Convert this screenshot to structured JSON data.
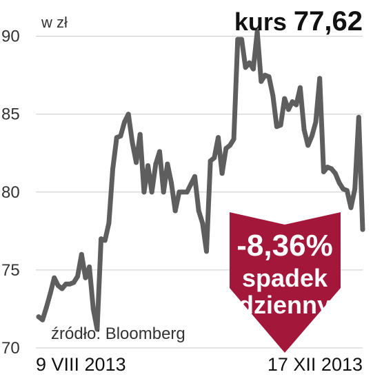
{
  "chart_data": {
    "type": "line",
    "unit_label": "w zł",
    "ylim": [
      70,
      91
    ],
    "yticks": [
      90,
      85,
      80,
      75,
      70
    ],
    "grid": true,
    "x_start_label": "9 VIII 2013",
    "x_end_label": "17 XII 2013",
    "source": "źródło: Bloomberg",
    "current": {
      "label": "kurs",
      "value": "77,62"
    },
    "change": {
      "value": "-8,36%",
      "line1": "spadek",
      "line2": "dzienny"
    },
    "colors": {
      "line": "#5e5e5e",
      "badge": "#a3173b",
      "grid": "#c9c9c9"
    },
    "values": [
      72.0,
      71.8,
      72.6,
      73.5,
      74.5,
      74.0,
      73.8,
      74.1,
      74.1,
      74.2,
      74.6,
      76.0,
      74.5,
      75.2,
      72.5,
      71.2,
      77.0,
      76.9,
      78.0,
      81.5,
      83.5,
      83.6,
      84.5,
      85.0,
      83.2,
      81.9,
      83.7,
      80.0,
      81.7,
      80.0,
      81.8,
      82.6,
      80.0,
      81.8,
      80.6,
      78.8,
      80.0,
      80.0,
      80.0,
      80.5,
      81.0,
      78.8,
      78.0,
      76.2,
      82.0,
      82.2,
      83.5,
      81.2,
      82.8,
      83.0,
      83.4,
      89.8,
      89.8,
      88.0,
      88.3,
      87.9,
      90.3,
      87.1,
      87.5,
      87.4,
      86.2,
      84.2,
      84.3,
      86.0,
      85.3,
      85.8,
      85.6,
      86.7,
      84.0,
      83.0,
      83.6,
      84.5,
      87.3,
      81.3,
      81.6,
      81.5,
      81.2,
      80.6,
      80.2,
      80.1,
      79.0,
      80.2,
      84.8,
      77.6
    ]
  }
}
